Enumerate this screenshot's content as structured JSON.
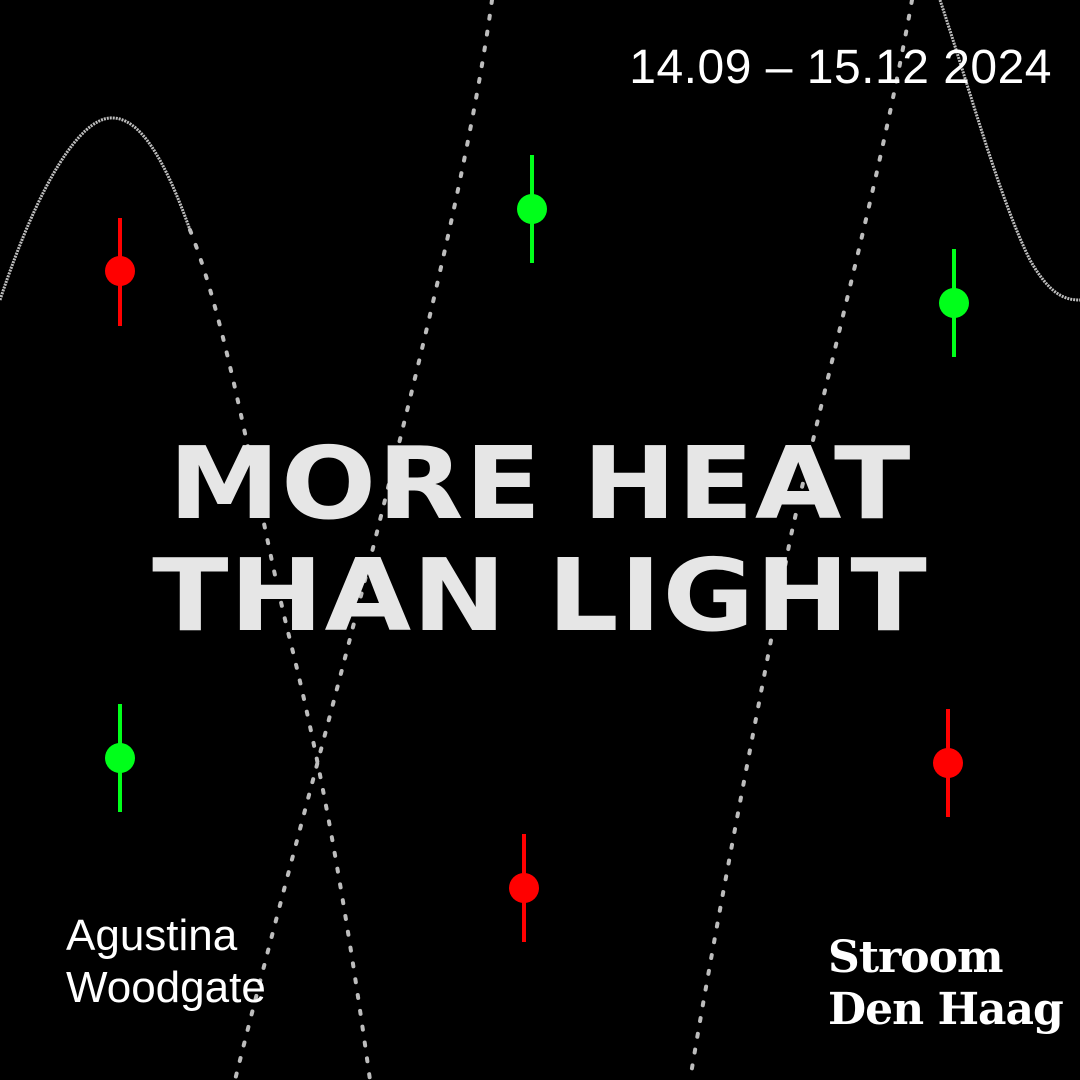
{
  "poster": {
    "date_range": "14.09 – 15.12 2024",
    "title_line_1": "MORE HEAT",
    "title_line_2": "THAN LIGHT",
    "artist_line_1": "Agustina",
    "artist_line_2": "Woodgate",
    "logo_line_1": "Stroom",
    "logo_line_2": "Den Haag"
  },
  "colors": {
    "background": "#000000",
    "text": "#ffffff",
    "title": "#e6e6e6",
    "marker_red": "#ff0000",
    "marker_green": "#00ff1a",
    "line": "#bdbdbd"
  },
  "markers": [
    {
      "color": "red"
    },
    {
      "color": "green"
    },
    {
      "color": "green"
    },
    {
      "color": "green"
    },
    {
      "color": "red"
    },
    {
      "color": "red"
    }
  ]
}
